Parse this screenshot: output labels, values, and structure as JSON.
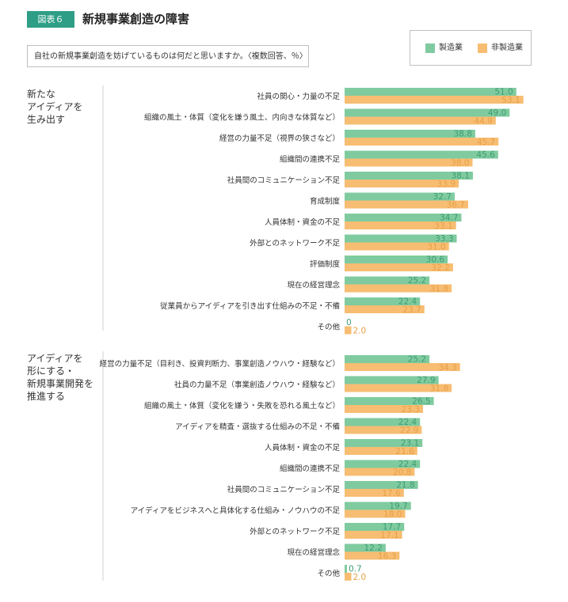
{
  "figure": {
    "badge": "図表６",
    "title": "新規事業創造の障害",
    "question": "自社の新規事業創造を妨げているものは何だと思いますか。〈複数回答、％〉"
  },
  "colors": {
    "badge": "#2e9e86",
    "manufacturing": "#7fcb9f",
    "non_manufacturing": "#f7bd72",
    "value_label_green": "#3f9d74",
    "value_label_orange": "#e8a048",
    "divider": "#d0d0d0"
  },
  "chart_data": {
    "type": "bar",
    "orientation": "horizontal",
    "legend": {
      "position": "top-right",
      "entries": [
        "製造業",
        "非製造業"
      ]
    },
    "series_names": [
      "製造業",
      "非製造業"
    ],
    "grid": false,
    "xlim": [
      0,
      60
    ],
    "groups": [
      {
        "label_lines": [
          "新たな",
          "アイディアを",
          "生み出す"
        ],
        "categories": [
          "社員の関心・力量の不足",
          "組織の風土・体質（変化を嫌う風土、内向きな体質など）",
          "経営の力量不足（視界の狭さなど）",
          "組織間の連携不足",
          "社員間のコミュニケーション不足",
          "育成制度",
          "人員体制・資金の不足",
          "外部とのネットワーク不足",
          "評価制度",
          "現在の経営理念",
          "従業員からアイディアを引き出す仕組みの不足・不備",
          "その他"
        ],
        "series": [
          {
            "name": "製造業",
            "values": [
              51.0,
              49.0,
              38.8,
              45.6,
              38.1,
              32.7,
              34.7,
              33.3,
              30.6,
              25.2,
              22.4,
              0
            ]
          },
          {
            "name": "非製造業",
            "values": [
              53.1,
              44.9,
              45.7,
              38.0,
              33.9,
              36.7,
              33.1,
              31.0,
              32.2,
              31.8,
              23.7,
              2.0
            ]
          }
        ]
      },
      {
        "label_lines": [
          "アイディアを",
          "形にする・",
          "新規事業開発を",
          "推進する"
        ],
        "categories": [
          "経営の力量不足（目利き、投資判断力、事業創造ノウハウ・経験など）",
          "社員の力量不足（事業創造ノウハウ・経験など）",
          "組織の風土・体質（変化を嫌う・失敗を恐れる風土など）",
          "アイディアを精査・選抜する仕組みの不足・不備",
          "人員体制・資金の不足",
          "組織間の連携不足",
          "社員間のコミュニケーション不足",
          "アイディアをビジネスへと具体化する仕組み・ノウハウの不足",
          "外部とのネットワーク不足",
          "現在の経営理念",
          "その他"
        ],
        "series": [
          {
            "name": "製造業",
            "values": [
              25.2,
              27.9,
              26.5,
              22.4,
              23.1,
              22.4,
              21.8,
              19.7,
              17.7,
              12.2,
              0.7
            ]
          },
          {
            "name": "非製造業",
            "values": [
              34.3,
              31.8,
              23.3,
              22.9,
              21.6,
              20.8,
              17.6,
              18.0,
              17.1,
              16.3,
              2.0
            ]
          }
        ]
      }
    ]
  }
}
